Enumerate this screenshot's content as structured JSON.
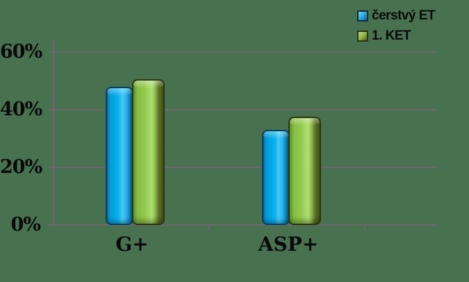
{
  "background_color": "#48714F",
  "gridline_color": "#6d676f",
  "chart_data": {
    "type": "bar",
    "style": "3d-rounded-vertical-bars",
    "title": "",
    "xlabel": "",
    "ylabel": "",
    "categories": [
      "G+",
      "ASP+"
    ],
    "series": [
      {
        "name": "čerstvý ET",
        "color": "#00a8e8",
        "values": [
          48,
          33
        ]
      },
      {
        "name": "1. KET",
        "color": "#8fc64c",
        "values": [
          50.5,
          37.5
        ]
      }
    ],
    "y_tick_labels": [
      "60%",
      "40%",
      "20%",
      "0%"
    ],
    "y_tick_values": [
      60,
      40,
      20,
      0
    ],
    "ylim": [
      0,
      65
    ],
    "grid": true,
    "legend_position": "top-right"
  },
  "legend": {
    "items": [
      {
        "label": "čerstvý ET",
        "swatch_color": "#00a8e8"
      },
      {
        "label": "1. KET",
        "swatch_color": "#8fc64c"
      }
    ]
  }
}
